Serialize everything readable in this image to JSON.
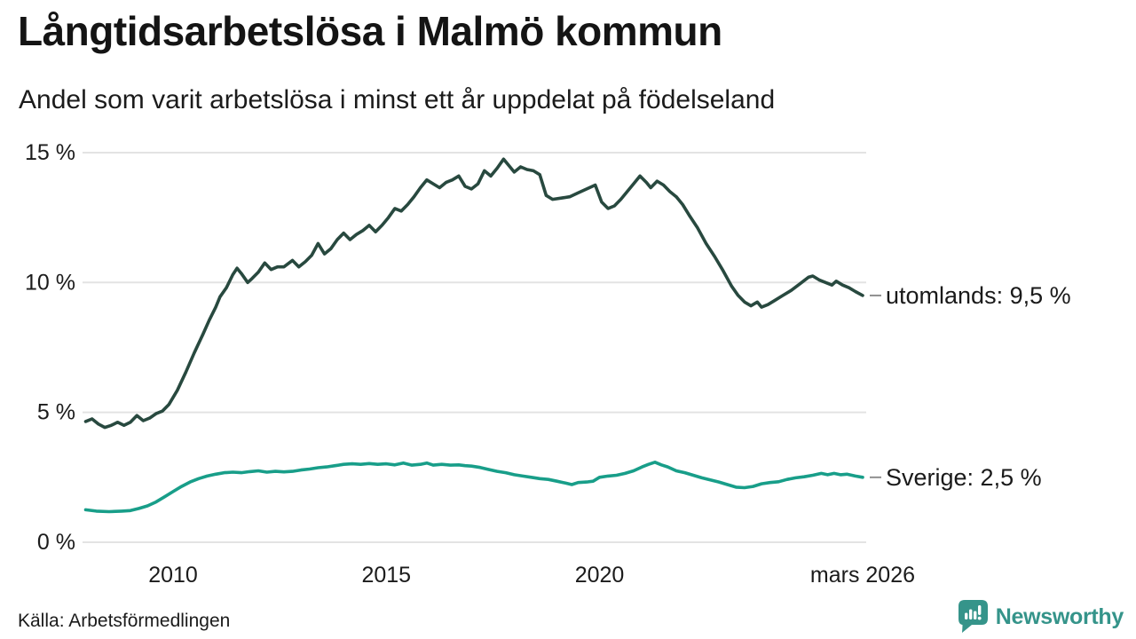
{
  "header": {
    "title": "Långtidsarbetslösa i Malmö kommun",
    "subtitle": "Andel som varit arbetslösa i minst ett år uppdelat på födelseland"
  },
  "footer": {
    "source": "Källa: Arbetsförmedlingen",
    "brand_name": "Newsworthy"
  },
  "colors": {
    "series_utomlands": "#28493f",
    "series_sverige": "#189e89",
    "gridline": "#e3e3e3",
    "axis_text": "#1b1b1b",
    "leader_dash": "#8f8f8f",
    "brand_teal": "#35948a"
  },
  "chart_data": {
    "type": "line",
    "title": "Långtidsarbetslösa i Malmö kommun",
    "subtitle": "Andel som varit arbetslösa i minst ett år uppdelat på födelseland",
    "grid": "horizontal",
    "legend_position": "right-end-labels",
    "x_range": [
      2007.95,
      2026.17
    ],
    "y_axis": {
      "range": [
        0,
        15.5
      ],
      "ticks": [
        {
          "value": 0,
          "label": "0 %"
        },
        {
          "value": 5,
          "label": "5 %"
        },
        {
          "value": 10,
          "label": "10 %"
        },
        {
          "value": 15,
          "label": "15 %"
        }
      ]
    },
    "x_axis": {
      "ticks": [
        {
          "year": 2010,
          "label": "2010"
        },
        {
          "year": 2015,
          "label": "2015"
        },
        {
          "year": 2020,
          "label": "2020"
        },
        {
          "year": 2026.17,
          "label": "mars 2026"
        }
      ]
    },
    "series": [
      {
        "name": "utomlands",
        "label": "utomlands: 9,5 %",
        "end_value": 9.5,
        "color": "#28493f",
        "points": [
          [
            2007.95,
            4.65
          ],
          [
            2008.1,
            4.75
          ],
          [
            2008.25,
            4.55
          ],
          [
            2008.4,
            4.42
          ],
          [
            2008.55,
            4.5
          ],
          [
            2008.7,
            4.62
          ],
          [
            2008.85,
            4.5
          ],
          [
            2009.0,
            4.62
          ],
          [
            2009.15,
            4.88
          ],
          [
            2009.3,
            4.68
          ],
          [
            2009.45,
            4.78
          ],
          [
            2009.6,
            4.95
          ],
          [
            2009.75,
            5.05
          ],
          [
            2009.9,
            5.3
          ],
          [
            2010.1,
            5.85
          ],
          [
            2010.3,
            6.55
          ],
          [
            2010.5,
            7.3
          ],
          [
            2010.7,
            8.0
          ],
          [
            2010.85,
            8.55
          ],
          [
            2011.0,
            9.05
          ],
          [
            2011.1,
            9.45
          ],
          [
            2011.25,
            9.8
          ],
          [
            2011.4,
            10.3
          ],
          [
            2011.5,
            10.55
          ],
          [
            2011.6,
            10.35
          ],
          [
            2011.75,
            10.0
          ],
          [
            2011.85,
            10.15
          ],
          [
            2012.0,
            10.4
          ],
          [
            2012.15,
            10.75
          ],
          [
            2012.3,
            10.5
          ],
          [
            2012.45,
            10.6
          ],
          [
            2012.6,
            10.6
          ],
          [
            2012.8,
            10.85
          ],
          [
            2012.95,
            10.6
          ],
          [
            2013.1,
            10.8
          ],
          [
            2013.25,
            11.05
          ],
          [
            2013.4,
            11.5
          ],
          [
            2013.55,
            11.1
          ],
          [
            2013.7,
            11.3
          ],
          [
            2013.85,
            11.65
          ],
          [
            2014.0,
            11.9
          ],
          [
            2014.15,
            11.65
          ],
          [
            2014.3,
            11.85
          ],
          [
            2014.45,
            12.0
          ],
          [
            2014.6,
            12.2
          ],
          [
            2014.75,
            11.95
          ],
          [
            2014.9,
            12.2
          ],
          [
            2015.05,
            12.5
          ],
          [
            2015.2,
            12.85
          ],
          [
            2015.35,
            12.75
          ],
          [
            2015.5,
            13.0
          ],
          [
            2015.65,
            13.3
          ],
          [
            2015.8,
            13.65
          ],
          [
            2015.95,
            13.95
          ],
          [
            2016.1,
            13.8
          ],
          [
            2016.25,
            13.65
          ],
          [
            2016.4,
            13.85
          ],
          [
            2016.55,
            13.95
          ],
          [
            2016.7,
            14.1
          ],
          [
            2016.85,
            13.7
          ],
          [
            2017.0,
            13.6
          ],
          [
            2017.15,
            13.8
          ],
          [
            2017.3,
            14.3
          ],
          [
            2017.45,
            14.1
          ],
          [
            2017.6,
            14.4
          ],
          [
            2017.75,
            14.75
          ],
          [
            2017.9,
            14.45
          ],
          [
            2018.0,
            14.25
          ],
          [
            2018.15,
            14.45
          ],
          [
            2018.3,
            14.35
          ],
          [
            2018.45,
            14.3
          ],
          [
            2018.6,
            14.15
          ],
          [
            2018.75,
            13.35
          ],
          [
            2018.9,
            13.2
          ],
          [
            2019.1,
            13.25
          ],
          [
            2019.3,
            13.3
          ],
          [
            2019.5,
            13.45
          ],
          [
            2019.7,
            13.6
          ],
          [
            2019.9,
            13.75
          ],
          [
            2020.05,
            13.1
          ],
          [
            2020.2,
            12.85
          ],
          [
            2020.35,
            12.95
          ],
          [
            2020.5,
            13.2
          ],
          [
            2020.65,
            13.5
          ],
          [
            2020.8,
            13.8
          ],
          [
            2020.95,
            14.1
          ],
          [
            2021.1,
            13.85
          ],
          [
            2021.2,
            13.65
          ],
          [
            2021.35,
            13.9
          ],
          [
            2021.5,
            13.75
          ],
          [
            2021.65,
            13.5
          ],
          [
            2021.8,
            13.3
          ],
          [
            2021.95,
            13.0
          ],
          [
            2022.1,
            12.6
          ],
          [
            2022.3,
            12.1
          ],
          [
            2022.5,
            11.5
          ],
          [
            2022.7,
            11.0
          ],
          [
            2022.9,
            10.45
          ],
          [
            2023.1,
            9.85
          ],
          [
            2023.25,
            9.5
          ],
          [
            2023.4,
            9.25
          ],
          [
            2023.55,
            9.1
          ],
          [
            2023.7,
            9.25
          ],
          [
            2023.8,
            9.05
          ],
          [
            2023.95,
            9.15
          ],
          [
            2024.1,
            9.3
          ],
          [
            2024.3,
            9.5
          ],
          [
            2024.5,
            9.7
          ],
          [
            2024.7,
            9.95
          ],
          [
            2024.9,
            10.2
          ],
          [
            2025.0,
            10.25
          ],
          [
            2025.15,
            10.1
          ],
          [
            2025.3,
            10.0
          ],
          [
            2025.45,
            9.9
          ],
          [
            2025.55,
            10.05
          ],
          [
            2025.7,
            9.9
          ],
          [
            2025.85,
            9.8
          ],
          [
            2026.0,
            9.65
          ],
          [
            2026.17,
            9.5
          ]
        ]
      },
      {
        "name": "sverige",
        "label": "Sverige: 2,5 %",
        "end_value": 2.5,
        "color": "#189e89",
        "points": [
          [
            2007.95,
            1.25
          ],
          [
            2008.2,
            1.2
          ],
          [
            2008.5,
            1.18
          ],
          [
            2008.8,
            1.2
          ],
          [
            2009.0,
            1.22
          ],
          [
            2009.2,
            1.3
          ],
          [
            2009.4,
            1.4
          ],
          [
            2009.6,
            1.55
          ],
          [
            2009.8,
            1.75
          ],
          [
            2010.0,
            1.95
          ],
          [
            2010.2,
            2.15
          ],
          [
            2010.4,
            2.32
          ],
          [
            2010.6,
            2.45
          ],
          [
            2010.8,
            2.55
          ],
          [
            2011.0,
            2.62
          ],
          [
            2011.2,
            2.68
          ],
          [
            2011.4,
            2.7
          ],
          [
            2011.6,
            2.68
          ],
          [
            2011.8,
            2.72
          ],
          [
            2012.0,
            2.75
          ],
          [
            2012.2,
            2.7
          ],
          [
            2012.4,
            2.73
          ],
          [
            2012.6,
            2.71
          ],
          [
            2012.8,
            2.73
          ],
          [
            2013.0,
            2.78
          ],
          [
            2013.2,
            2.82
          ],
          [
            2013.4,
            2.87
          ],
          [
            2013.6,
            2.9
          ],
          [
            2013.8,
            2.95
          ],
          [
            2014.0,
            3.0
          ],
          [
            2014.2,
            3.02
          ],
          [
            2014.4,
            3.0
          ],
          [
            2014.6,
            3.03
          ],
          [
            2014.8,
            3.0
          ],
          [
            2015.0,
            3.02
          ],
          [
            2015.2,
            2.98
          ],
          [
            2015.4,
            3.05
          ],
          [
            2015.6,
            2.97
          ],
          [
            2015.8,
            3.0
          ],
          [
            2015.95,
            3.05
          ],
          [
            2016.1,
            2.97
          ],
          [
            2016.3,
            3.0
          ],
          [
            2016.5,
            2.97
          ],
          [
            2016.7,
            2.98
          ],
          [
            2016.85,
            2.95
          ],
          [
            2017.0,
            2.93
          ],
          [
            2017.2,
            2.88
          ],
          [
            2017.4,
            2.8
          ],
          [
            2017.6,
            2.73
          ],
          [
            2017.8,
            2.68
          ],
          [
            2018.0,
            2.6
          ],
          [
            2018.2,
            2.55
          ],
          [
            2018.4,
            2.5
          ],
          [
            2018.6,
            2.45
          ],
          [
            2018.8,
            2.42
          ],
          [
            2019.0,
            2.35
          ],
          [
            2019.2,
            2.28
          ],
          [
            2019.35,
            2.22
          ],
          [
            2019.5,
            2.3
          ],
          [
            2019.7,
            2.32
          ],
          [
            2019.85,
            2.35
          ],
          [
            2020.0,
            2.5
          ],
          [
            2020.2,
            2.55
          ],
          [
            2020.4,
            2.58
          ],
          [
            2020.6,
            2.65
          ],
          [
            2020.8,
            2.75
          ],
          [
            2021.0,
            2.9
          ],
          [
            2021.15,
            3.0
          ],
          [
            2021.3,
            3.08
          ],
          [
            2021.45,
            2.98
          ],
          [
            2021.6,
            2.9
          ],
          [
            2021.8,
            2.75
          ],
          [
            2022.0,
            2.68
          ],
          [
            2022.2,
            2.58
          ],
          [
            2022.4,
            2.48
          ],
          [
            2022.6,
            2.4
          ],
          [
            2022.8,
            2.32
          ],
          [
            2023.0,
            2.22
          ],
          [
            2023.2,
            2.12
          ],
          [
            2023.4,
            2.1
          ],
          [
            2023.6,
            2.15
          ],
          [
            2023.8,
            2.25
          ],
          [
            2024.0,
            2.3
          ],
          [
            2024.2,
            2.33
          ],
          [
            2024.4,
            2.42
          ],
          [
            2024.6,
            2.48
          ],
          [
            2024.8,
            2.52
          ],
          [
            2025.0,
            2.58
          ],
          [
            2025.2,
            2.65
          ],
          [
            2025.35,
            2.6
          ],
          [
            2025.5,
            2.65
          ],
          [
            2025.65,
            2.6
          ],
          [
            2025.8,
            2.62
          ],
          [
            2026.0,
            2.55
          ],
          [
            2026.17,
            2.5
          ]
        ]
      }
    ]
  }
}
